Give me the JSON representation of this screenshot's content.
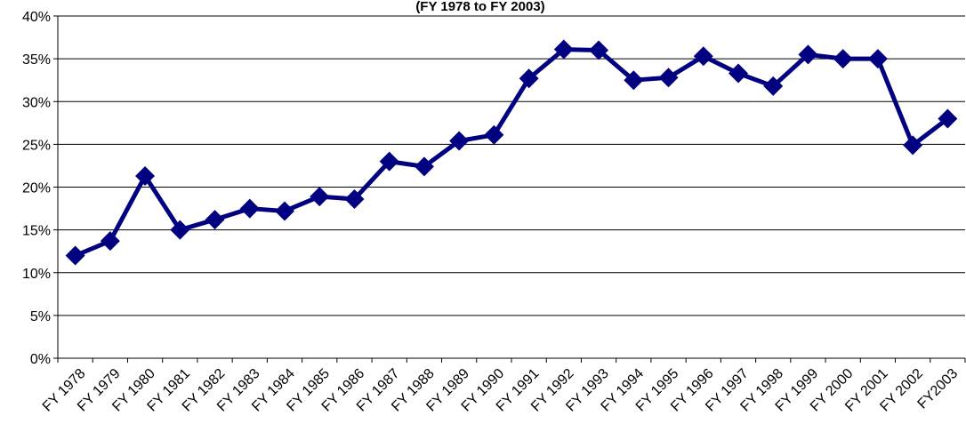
{
  "chart_data": {
    "type": "line",
    "title": "(FY 1978 to FY 2003)",
    "categories": [
      "FY 1978",
      "FY 1979",
      "FY 1980",
      "FY 1981",
      "FY 1982",
      "FY 1983",
      "FY 1984",
      "FY 1985",
      "FY 1986",
      "FY 1987",
      "FY 1988",
      "FY 1989",
      "FY 1990",
      "FY 1991",
      "FY 1992",
      "FY 1993",
      "FY 1994",
      "FY 1995",
      "FY 1996",
      "FY 1997",
      "FY 1998",
      "FY 1999",
      "FY 2000",
      "FY 2001",
      "FY 2002",
      "FY2003"
    ],
    "values": [
      12.0,
      13.7,
      21.3,
      15.0,
      16.2,
      17.5,
      17.2,
      18.9,
      18.6,
      23.0,
      22.4,
      25.4,
      26.1,
      32.7,
      36.1,
      36.0,
      32.5,
      32.8,
      35.3,
      33.3,
      31.8,
      35.5,
      35.0,
      35.0,
      24.9,
      28.0
    ],
    "color": "#000080",
    "ylim": [
      0,
      40
    ],
    "yticks": [
      {
        "value": 0,
        "label": "0%"
      },
      {
        "value": 5,
        "label": "5%"
      },
      {
        "value": 10,
        "label": "10%"
      },
      {
        "value": 15,
        "label": "15%"
      },
      {
        "value": 20,
        "label": "20%"
      },
      {
        "value": 25,
        "label": "25%"
      },
      {
        "value": 30,
        "label": "30%"
      },
      {
        "value": 35,
        "label": "35%"
      },
      {
        "value": 40,
        "label": "40%"
      }
    ],
    "grid": true
  }
}
